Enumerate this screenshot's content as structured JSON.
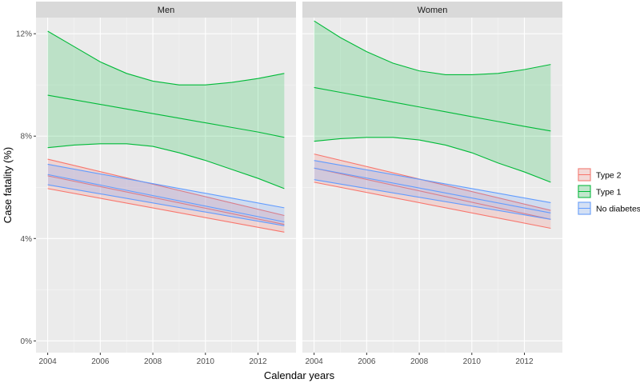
{
  "chart_data": {
    "type": "line",
    "panels": [
      "Men",
      "Women"
    ],
    "xlabel": "Calendar years",
    "ylabel": "Case fatality (%)",
    "xlim": [
      2004,
      2013
    ],
    "ylim": [
      0,
      12.5
    ],
    "x_ticks": [
      2004,
      2006,
      2008,
      2010,
      2012
    ],
    "y_ticks": [
      0,
      4,
      8,
      12
    ],
    "y_tick_labels": [
      "0%",
      "4%",
      "8%",
      "12%"
    ],
    "legend_position": "right",
    "series": [
      {
        "name": "Type 2",
        "color": "#F8766D",
        "panels": {
          "Men": {
            "x": [
              2004,
              2013
            ],
            "estimate": [
              6.45,
              4.55
            ],
            "upper": [
              7.1,
              4.9
            ],
            "lower": [
              5.95,
              4.25
            ]
          },
          "Women": {
            "x": [
              2004,
              2013
            ],
            "estimate": [
              6.75,
              4.75
            ],
            "upper": [
              7.3,
              5.1
            ],
            "lower": [
              6.2,
              4.4
            ]
          }
        }
      },
      {
        "name": "Type 1",
        "color": "#00BA38",
        "panels": {
          "Men": {
            "x": [
              2004,
              2005,
              2006,
              2007,
              2008,
              2009,
              2010,
              2011,
              2012,
              2013
            ],
            "estimate": [
              9.6,
              9.42,
              9.24,
              9.06,
              8.88,
              8.7,
              8.52,
              8.34,
              8.16,
              7.95
            ],
            "upper": [
              12.1,
              11.5,
              10.9,
              10.45,
              10.15,
              10.0,
              10.0,
              10.1,
              10.25,
              10.45
            ],
            "lower": [
              7.55,
              7.65,
              7.7,
              7.7,
              7.6,
              7.35,
              7.05,
              6.7,
              6.35,
              5.95
            ]
          },
          "Women": {
            "x": [
              2004,
              2005,
              2006,
              2007,
              2008,
              2009,
              2010,
              2011,
              2012,
              2013
            ],
            "estimate": [
              9.9,
              9.71,
              9.52,
              9.33,
              9.14,
              8.95,
              8.76,
              8.57,
              8.38,
              8.2
            ],
            "upper": [
              12.5,
              11.85,
              11.3,
              10.85,
              10.55,
              10.4,
              10.4,
              10.45,
              10.6,
              10.8
            ],
            "lower": [
              7.8,
              7.9,
              7.95,
              7.95,
              7.85,
              7.65,
              7.35,
              6.95,
              6.6,
              6.2
            ]
          }
        }
      },
      {
        "name": "No diabetes",
        "color": "#619CFF",
        "panels": {
          "Men": {
            "x": [
              2004,
              2013
            ],
            "estimate": [
              6.5,
              4.65
            ],
            "upper": [
              6.9,
              5.2
            ],
            "lower": [
              6.1,
              4.5
            ]
          },
          "Women": {
            "x": [
              2004,
              2013
            ],
            "estimate": [
              6.75,
              5.0
            ],
            "upper": [
              7.05,
              5.4
            ],
            "lower": [
              6.3,
              4.75
            ]
          }
        }
      }
    ]
  }
}
